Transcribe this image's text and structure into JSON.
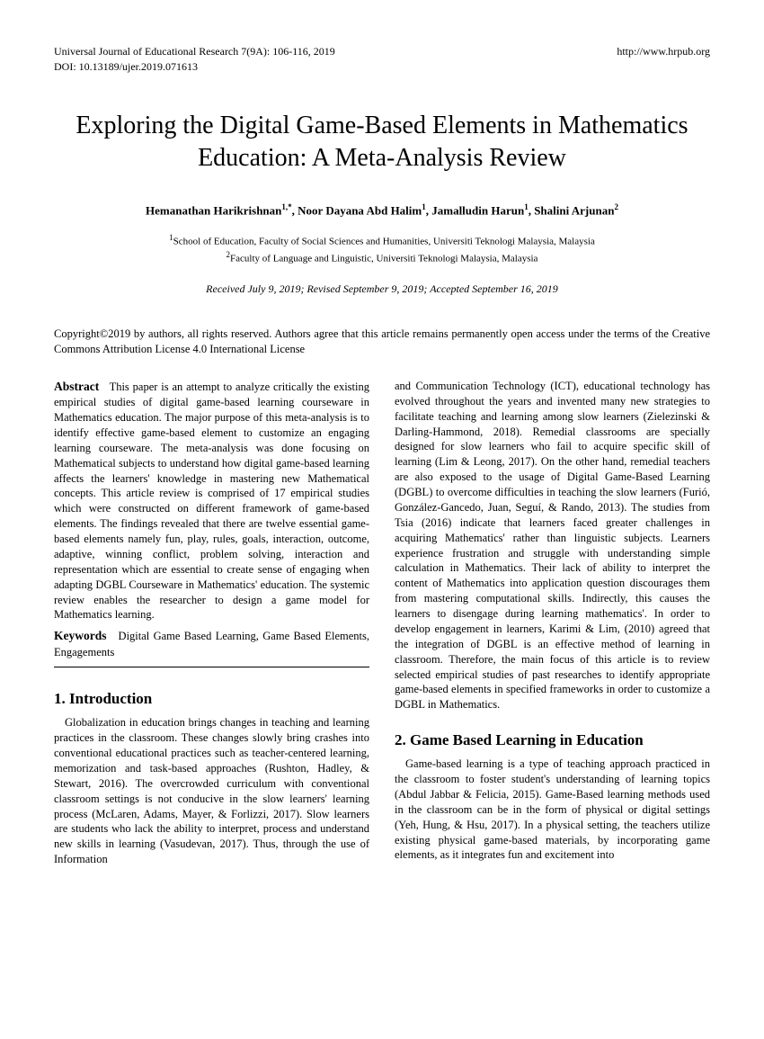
{
  "header": {
    "journal": "Universal Journal of Educational Research 7(9A): 106-116, 2019",
    "url": "http://www.hrpub.org",
    "doi": "DOI: 10.13189/ujer.2019.071613"
  },
  "title": "Exploring the Digital Game-Based Elements in Mathematics Education: A Meta-Analysis Review",
  "authors_html": "Hemanathan Harikrishnan<sup>1,*</sup>, Noor Dayana Abd Halim<sup>1</sup>, Jamalludin Harun<sup>1</sup>, Shalini Arjunan<sup>2</sup>",
  "affiliations": {
    "a1": "School of Education, Faculty of Social Sciences and Humanities, Universiti Teknologi Malaysia, Malaysia",
    "a2": "Faculty of Language and Linguistic, Universiti Teknologi Malaysia, Malaysia"
  },
  "dates": "Received July 9, 2019; Revised September 9, 2019; Accepted September 16, 2019",
  "copyright": "Copyright©2019 by authors, all rights reserved. Authors agree that this article remains permanently open access under the terms of the Creative Commons Attribution License 4.0 International License",
  "abstract_label": "Abstract",
  "abstract_text": "This paper is an attempt to analyze critically the existing empirical studies of digital game-based learning courseware in Mathematics education. The major purpose of this meta-analysis is to identify effective game-based element to customize an engaging learning courseware. The meta-analysis was done focusing on Mathematical subjects to understand how digital game-based learning affects the learners' knowledge in mastering new Mathematical concepts. This article review is comprised of 17 empirical studies which were constructed on different framework of game-based elements. The findings revealed that there are twelve essential game-based elements namely fun, play, rules, goals, interaction, outcome, adaptive, winning conflict, problem solving, interaction and representation which are essential to create sense of engaging when adapting DGBL Courseware in Mathematics' education. The systemic review enables the researcher to design a game model for Mathematics learning.",
  "keywords_label": "Keywords",
  "keywords_text": "Digital Game Based Learning, Game Based Elements, Engagements",
  "section1_title": "1. Introduction",
  "section1_text": "Globalization in education brings changes in teaching and learning practices in the classroom. These changes slowly bring crashes into conventional educational practices such as teacher-centered learning, memorization and task-based approaches (Rushton, Hadley, & Stewart, 2016). The overcrowded curriculum with conventional classroom settings is not conducive in the slow learners' learning process (McLaren, Adams, Mayer, & Forlizzi, 2017). Slow learners are students who lack the ability to interpret, process and understand new skills in learning (Vasudevan, 2017). Thus, through the use of Information",
  "col2_text": "and Communication Technology (ICT), educational technology has evolved throughout the years and invented many new strategies to facilitate teaching and learning among slow learners (Zielezinski & Darling-Hammond, 2018). Remedial classrooms are specially designed for slow learners who fail to acquire specific skill of learning (Lim & Leong, 2017). On the other hand, remedial teachers are also exposed to the usage of Digital Game-Based Learning (DGBL) to overcome difficulties in teaching the slow learners (Furió, González-Gancedo, Juan, Seguí, & Rando, 2013). The studies from Tsia (2016) indicate that learners faced greater challenges in acquiring Mathematics' rather than linguistic subjects. Learners experience frustration and struggle with understanding simple calculation in Mathematics. Their lack of ability to interpret the content of Mathematics into application question discourages them from mastering computational skills. Indirectly, this causes the learners to disengage during learning mathematics'. In order to develop engagement in learners, Karimi & Lim, (2010) agreed that the integration of DGBL is an effective method of learning in classroom. Therefore, the main focus of this article is to review selected empirical studies of past researches to identify appropriate game-based elements in specified frameworks in order to customize a DGBL in Mathematics.",
  "section2_title": "2. Game Based Learning in Education",
  "section2_text": "Game-based learning is a type of teaching approach practiced in the classroom to foster student's understanding of learning topics (Abdul Jabbar & Felicia, 2015). Game-Based learning methods used in the classroom can be in the form of physical or digital settings (Yeh, Hung, & Hsu, 2017). In a physical setting, the teachers utilize existing physical game-based materials, by incorporating game elements, as it integrates fun and excitement into"
}
